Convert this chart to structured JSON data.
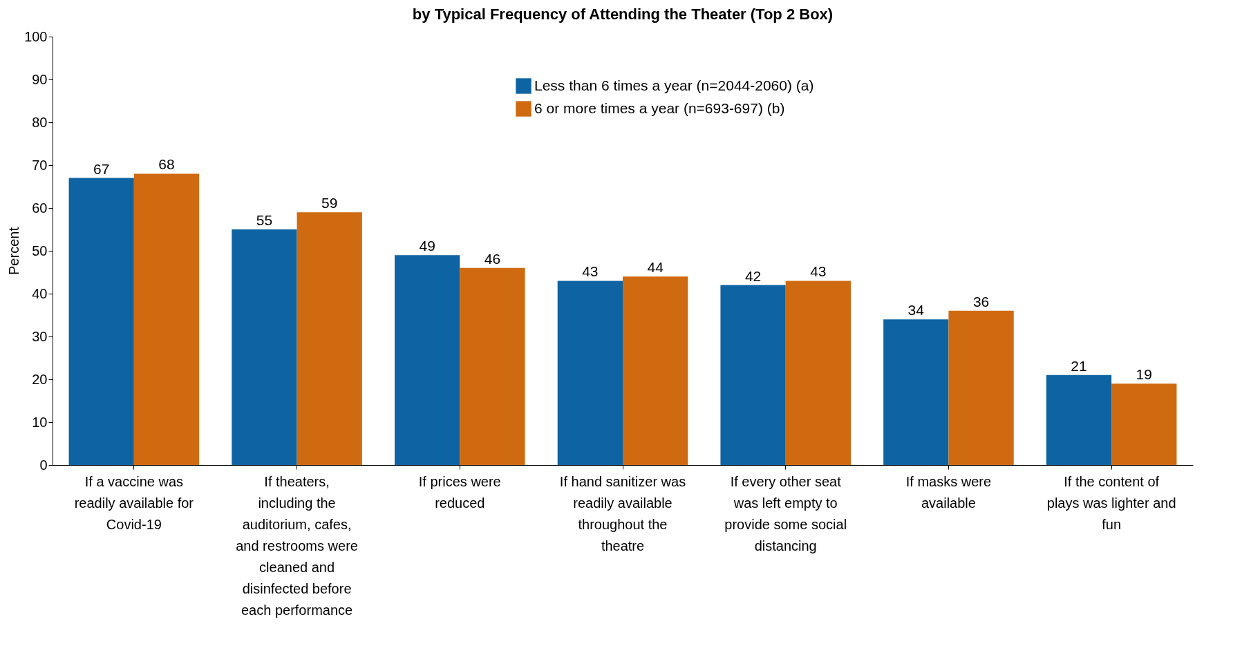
{
  "chart_data": {
    "type": "bar",
    "title": "by Typical Frequency of Attending the Theater (Top 2 Box)",
    "ylabel": "Percent",
    "categories": [
      "If a vaccine was readily available for Covid-19",
      "If theaters, including the auditorium, cafes, and restrooms were cleaned and disinfected before each performance",
      "If prices were reduced",
      "If hand sanitizer was readily available throughout the theatre",
      "If every other seat was left empty to provide some social distancing",
      "If masks were available",
      "If the content of plays was lighter and fun"
    ],
    "series": [
      {
        "name": "Less than 6 times a year (n=2044-2060) (a)",
        "color": "#0e64a2",
        "values": [
          67,
          55,
          49,
          43,
          42,
          34,
          21
        ]
      },
      {
        "name": "6 or more times a year (n=693-697) (b)",
        "color": "#d06a10",
        "values": [
          68,
          59,
          46,
          44,
          43,
          36,
          19
        ]
      }
    ],
    "ylim": [
      0,
      100
    ],
    "yticks": [
      0,
      10,
      20,
      30,
      40,
      50,
      60,
      70,
      80,
      90,
      100
    ],
    "grid": false,
    "legend": "top",
    "data_labels": true
  }
}
